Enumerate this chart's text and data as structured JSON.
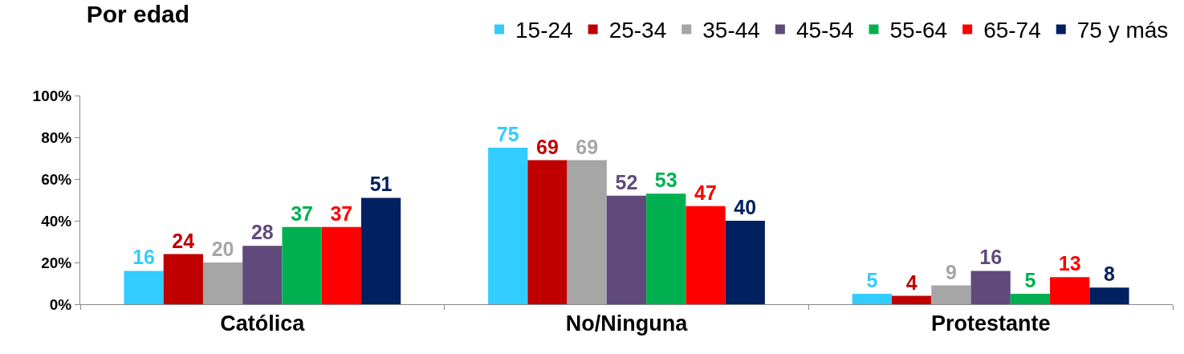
{
  "chart_data": {
    "type": "bar",
    "title": "Por edad",
    "categories": [
      "Católica",
      "No/Ninguna",
      "Protestante"
    ],
    "series": [
      {
        "name": "15-24",
        "color": "#33ccff",
        "values": [
          16,
          75,
          5
        ]
      },
      {
        "name": "25-34",
        "color": "#c00000",
        "values": [
          24,
          69,
          4
        ]
      },
      {
        "name": "35-44",
        "color": "#a6a6a6",
        "values": [
          20,
          69,
          9
        ]
      },
      {
        "name": "45-54",
        "color": "#604a7b",
        "values": [
          28,
          52,
          16
        ]
      },
      {
        "name": "55-64",
        "color": "#00b050",
        "values": [
          37,
          53,
          5
        ]
      },
      {
        "name": "65-74",
        "color": "#ff0000",
        "values": [
          37,
          47,
          13
        ]
      },
      {
        "name": "75 y más",
        "color": "#002060",
        "values": [
          51,
          40,
          8
        ]
      }
    ],
    "ylim": [
      0,
      100
    ],
    "yticks": [
      {
        "value": 0,
        "label": "0%"
      },
      {
        "value": 20,
        "label": "20%"
      },
      {
        "value": 40,
        "label": "40%"
      },
      {
        "value": 60,
        "label": "60%"
      },
      {
        "value": 80,
        "label": "80%"
      },
      {
        "value": 100,
        "label": "100%"
      }
    ],
    "grid": false,
    "legend": "top right",
    "data_labels": true
  }
}
